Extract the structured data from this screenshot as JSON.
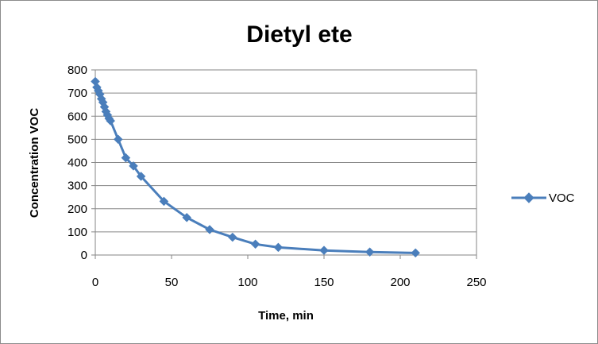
{
  "chart_data": {
    "type": "line",
    "title": "Dietyl ete",
    "xlabel": "Time, min",
    "ylabel": "Concentration VOC",
    "xlim": [
      0,
      250
    ],
    "ylim": [
      0,
      800
    ],
    "xticks": [
      0,
      50,
      100,
      150,
      200,
      250
    ],
    "yticks": [
      0,
      100,
      200,
      300,
      400,
      500,
      600,
      700,
      800
    ],
    "grid": "horizontal",
    "legend": "right",
    "series": [
      {
        "name": "VOC",
        "color": "#4a7ebb",
        "marker": "diamond",
        "x": [
          0,
          1,
          2,
          3,
          4,
          5,
          6,
          7,
          8,
          9,
          10,
          15,
          20,
          25,
          30,
          45,
          60,
          75,
          90,
          105,
          120,
          150,
          180,
          210
        ],
        "y": [
          750,
          725,
          710,
          695,
          675,
          660,
          640,
          620,
          605,
          590,
          580,
          500,
          420,
          385,
          340,
          232,
          162,
          110,
          77,
          47,
          33,
          20,
          13,
          9
        ]
      }
    ]
  }
}
